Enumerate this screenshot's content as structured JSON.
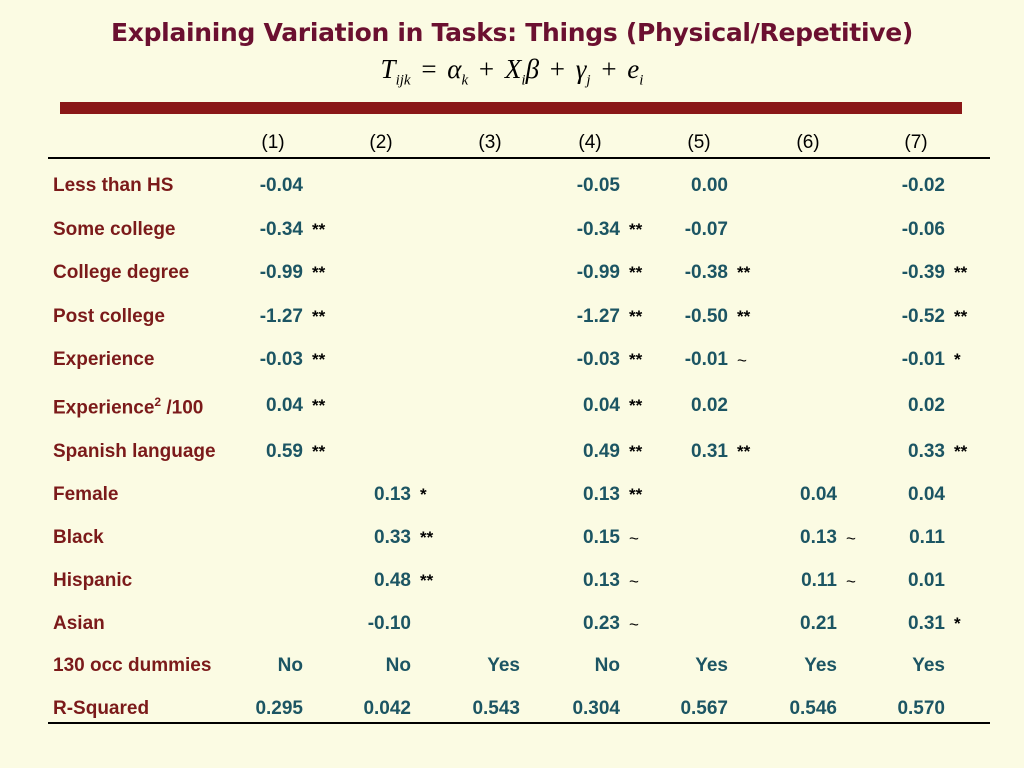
{
  "title": "Explaining Variation in Tasks: Things (Physical/Repetitive)",
  "formula": {
    "T": "T",
    "T_sub": "ijk",
    "eq": "=",
    "alpha": "α",
    "alpha_sub": "k",
    "plus1": "+",
    "X": "X",
    "X_sub": "i",
    "beta": "β",
    "plus2": "+",
    "gamma": "γ",
    "gamma_sub": "j",
    "plus3": "+",
    "e": "e",
    "e_sub": "i"
  },
  "columns": [
    "(1)",
    "(2)",
    "(3)",
    "(4)",
    "(5)",
    "(6)",
    "(7)"
  ],
  "rows": [
    {
      "label": "Less than HS",
      "cells": [
        [
          "-0.04",
          ""
        ],
        [
          "",
          ""
        ],
        [
          "",
          ""
        ],
        [
          "-0.05",
          ""
        ],
        [
          "0.00",
          ""
        ],
        [
          "",
          ""
        ],
        [
          "-0.02",
          ""
        ]
      ]
    },
    {
      "label": "Some college",
      "cells": [
        [
          "-0.34",
          "**"
        ],
        [
          "",
          ""
        ],
        [
          "",
          ""
        ],
        [
          "-0.34",
          "**"
        ],
        [
          "-0.07",
          ""
        ],
        [
          "",
          ""
        ],
        [
          "-0.06",
          ""
        ]
      ]
    },
    {
      "label": "College degree",
      "cells": [
        [
          "-0.99",
          "**"
        ],
        [
          "",
          ""
        ],
        [
          "",
          ""
        ],
        [
          "-0.99",
          "**"
        ],
        [
          "-0.38",
          "**"
        ],
        [
          "",
          ""
        ],
        [
          "-0.39",
          "**"
        ]
      ]
    },
    {
      "label": "Post college",
      "cells": [
        [
          "-1.27",
          "**"
        ],
        [
          "",
          ""
        ],
        [
          "",
          ""
        ],
        [
          "-1.27",
          "**"
        ],
        [
          "-0.50",
          "**"
        ],
        [
          "",
          ""
        ],
        [
          "-0.52",
          "**"
        ]
      ]
    },
    {
      "label": "Experience",
      "cells": [
        [
          "-0.03",
          "**"
        ],
        [
          "",
          ""
        ],
        [
          "",
          ""
        ],
        [
          "-0.03",
          "**"
        ],
        [
          "-0.01",
          "~"
        ],
        [
          "",
          ""
        ],
        [
          "-0.01",
          "*"
        ]
      ]
    },
    {
      "label": "Experience",
      "label_sup": "2",
      "label_suffix": " /100",
      "cells": [
        [
          "0.04",
          "**"
        ],
        [
          "",
          ""
        ],
        [
          "",
          ""
        ],
        [
          "0.04",
          "**"
        ],
        [
          "0.02",
          ""
        ],
        [
          "",
          ""
        ],
        [
          "0.02",
          ""
        ]
      ]
    },
    {
      "label": "Spanish language",
      "cells": [
        [
          "0.59",
          "**"
        ],
        [
          "",
          ""
        ],
        [
          "",
          ""
        ],
        [
          "0.49",
          "**"
        ],
        [
          "0.31",
          "**"
        ],
        [
          "",
          ""
        ],
        [
          "0.33",
          "**"
        ]
      ]
    },
    {
      "label": "Female",
      "cells": [
        [
          "",
          ""
        ],
        [
          "0.13",
          "*"
        ],
        [
          "",
          ""
        ],
        [
          "0.13",
          "**"
        ],
        [
          "",
          ""
        ],
        [
          "0.04",
          ""
        ],
        [
          "0.04",
          ""
        ]
      ]
    },
    {
      "label": "Black",
      "cells": [
        [
          "",
          ""
        ],
        [
          "0.33",
          "**"
        ],
        [
          "",
          ""
        ],
        [
          "0.15",
          "~"
        ],
        [
          "",
          ""
        ],
        [
          "0.13",
          "~"
        ],
        [
          "0.11",
          ""
        ]
      ]
    },
    {
      "label": "Hispanic",
      "cells": [
        [
          "",
          ""
        ],
        [
          "0.48",
          "**"
        ],
        [
          "",
          ""
        ],
        [
          "0.13",
          "~"
        ],
        [
          "",
          ""
        ],
        [
          "0.11",
          "~"
        ],
        [
          "0.01",
          ""
        ]
      ]
    },
    {
      "label": "Asian",
      "cells": [
        [
          "",
          ""
        ],
        [
          "-0.10",
          ""
        ],
        [
          "",
          ""
        ],
        [
          "0.23",
          "~"
        ],
        [
          "",
          ""
        ],
        [
          "0.21",
          ""
        ],
        [
          "0.31",
          "*"
        ]
      ]
    },
    {
      "label": "130 occ dummies",
      "cells": [
        [
          "No",
          ""
        ],
        [
          "No",
          ""
        ],
        [
          "Yes",
          ""
        ],
        [
          "No",
          ""
        ],
        [
          "Yes",
          ""
        ],
        [
          "Yes",
          ""
        ],
        [
          "Yes",
          ""
        ]
      ]
    },
    {
      "label": "R-Squared",
      "cells": [
        [
          "0.295",
          ""
        ],
        [
          "0.042",
          ""
        ],
        [
          "0.543",
          ""
        ],
        [
          "0.304",
          ""
        ],
        [
          "0.567",
          ""
        ],
        [
          "0.546",
          ""
        ],
        [
          "0.570",
          ""
        ]
      ]
    }
  ],
  "colors": {
    "title": "#6b1030",
    "label": "#7b1a1a",
    "value": "#1c5563",
    "rule": "#8a1717",
    "background": "#fbfbe3"
  }
}
